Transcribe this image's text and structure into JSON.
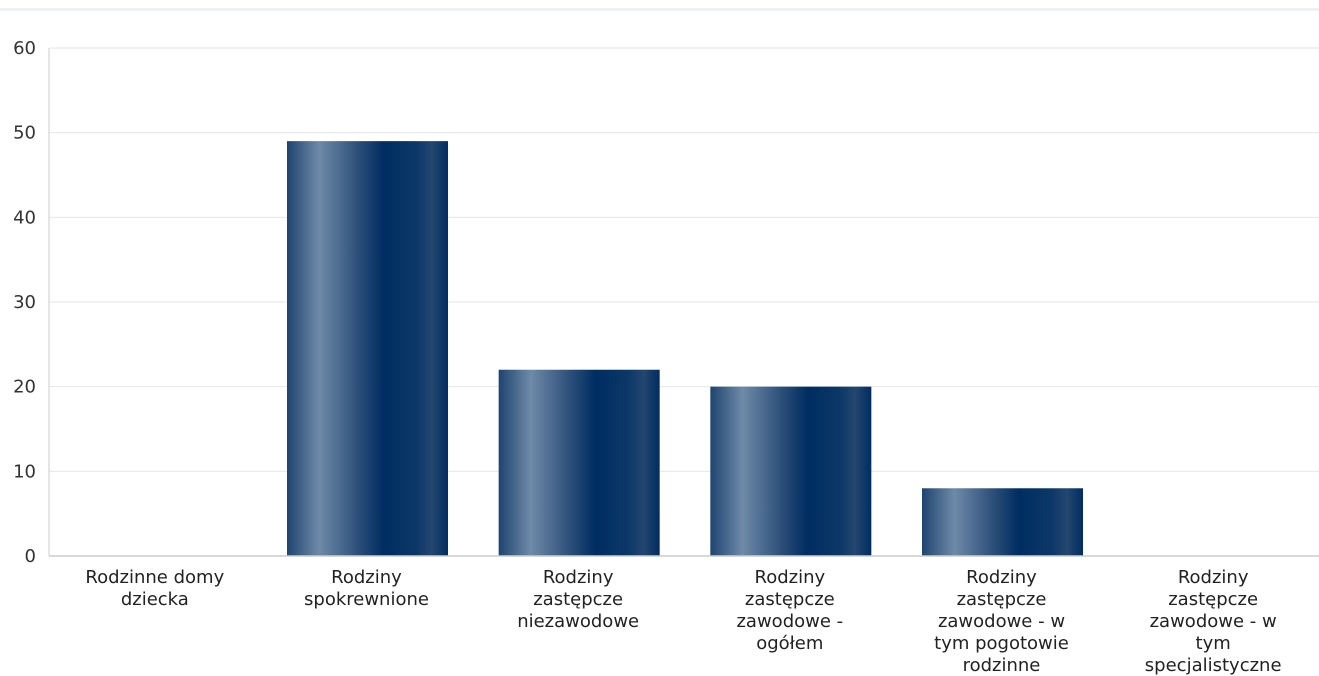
{
  "chart_data": {
    "type": "bar",
    "title": "",
    "xlabel": "",
    "ylabel": "",
    "ylim": [
      0,
      60
    ],
    "yticks": [
      0,
      10,
      20,
      30,
      40,
      50,
      60
    ],
    "grid": true,
    "categories": [
      [
        "Rodzinne domy",
        "dziecka"
      ],
      [
        "Rodziny",
        "spokrewnione"
      ],
      [
        "Rodziny",
        "zastępcze",
        "niezawodowe"
      ],
      [
        "Rodziny",
        "zastępcze",
        "zawodowe -",
        "ogółem"
      ],
      [
        "Rodziny",
        "zastępcze",
        "zawodowe - w",
        "tym pogotowie",
        "rodzinne"
      ],
      [
        "Rodziny",
        "zastępcze",
        "zawodowe - w",
        "tym",
        "specjalistyczne"
      ]
    ],
    "values": [
      0,
      49,
      22,
      20,
      8,
      0
    ],
    "colors": {
      "bar_dark": "#002d62",
      "bar_light": "#6e8aa8",
      "grid": "#e6e6e6",
      "axis": "#cccccc"
    }
  }
}
